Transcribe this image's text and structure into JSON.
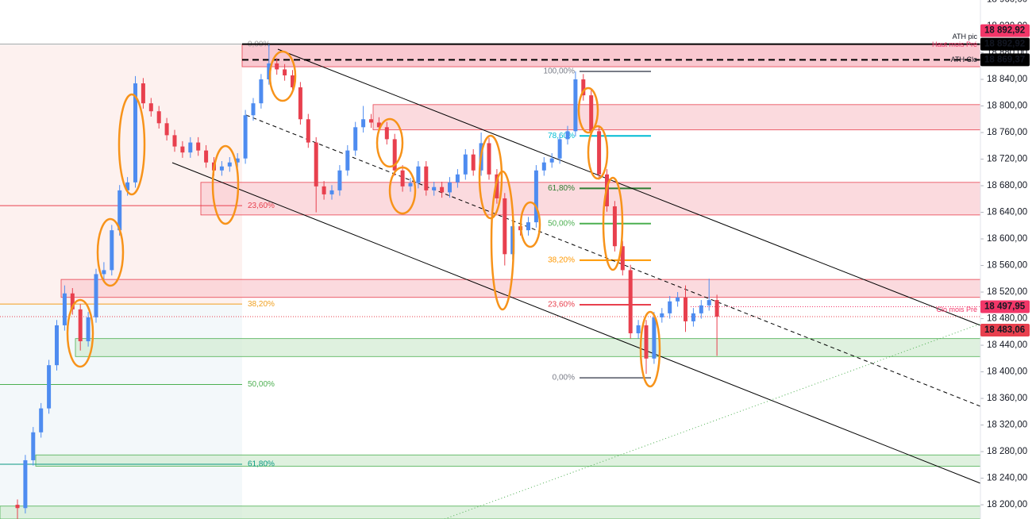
{
  "chart_data": {
    "type": "candlestick",
    "up_color": "#4e8cf0",
    "down_color": "#e8404e",
    "open": [
      18200,
      18195,
      18267,
      18309,
      18345,
      18410,
      18470,
      18518,
      18494,
      18446,
      18482,
      18547,
      18553,
      18613,
      18673,
      18685,
      18834,
      18804,
      18792,
      18774,
      18756,
      18739,
      18730,
      18745,
      18733,
      18715,
      18703,
      18709,
      18715,
      18721,
      18786,
      18804,
      18840,
      18864,
      18855,
      18846,
      18828,
      18780,
      18745,
      18679,
      18667,
      18673,
      18703,
      18733,
      18768,
      18780,
      18775,
      18768,
      18750,
      18703,
      18679,
      18684,
      18709,
      18673,
      18678,
      18670,
      18685,
      18697,
      18727,
      18703,
      18744,
      18697,
      18661,
      18577,
      18619,
      18613,
      18625,
      18703,
      18715,
      18721,
      18750,
      18762,
      18840,
      18816,
      18762,
      18697,
      18649,
      18589,
      18553,
      18458,
      18470,
      18420,
      18482,
      18488,
      18506,
      18512,
      18476,
      18488,
      18500,
      18508
    ],
    "high": [
      18208,
      18275,
      18317,
      18353,
      18418,
      18478,
      18530,
      18526,
      18502,
      18490,
      18555,
      18565,
      18621,
      18681,
      18693,
      18845,
      18842,
      18812,
      18800,
      18782,
      18764,
      18747,
      18753,
      18753,
      18741,
      18723,
      18717,
      18723,
      18729,
      18794,
      18812,
      18848,
      18893,
      18872,
      18863,
      18854,
      18836,
      18788,
      18753,
      18687,
      18681,
      18711,
      18741,
      18776,
      18800,
      18788,
      18783,
      18776,
      18758,
      18711,
      18692,
      18717,
      18717,
      18686,
      18686,
      18693,
      18705,
      18735,
      18735,
      18760,
      18752,
      18705,
      18669,
      18627,
      18627,
      18633,
      18711,
      18723,
      18729,
      18758,
      18770,
      18852,
      18848,
      18824,
      18770,
      18705,
      18657,
      18597,
      18561,
      18478,
      18478,
      18490,
      18496,
      18514,
      18520,
      18530,
      18496,
      18508,
      18540,
      18516
    ],
    "low": [
      18175,
      18187,
      18259,
      18301,
      18337,
      18402,
      18462,
      18486,
      18432,
      18438,
      18474,
      18539,
      18545,
      18605,
      18665,
      18677,
      18796,
      18784,
      18766,
      18748,
      18731,
      18722,
      18722,
      18725,
      18707,
      18695,
      18695,
      18701,
      18707,
      18713,
      18778,
      18796,
      18832,
      18847,
      18838,
      18820,
      18772,
      18737,
      18640,
      18659,
      18659,
      18665,
      18695,
      18725,
      18760,
      18767,
      18760,
      18742,
      18695,
      18671,
      18671,
      18676,
      18665,
      18665,
      18662,
      18662,
      18677,
      18689,
      18695,
      18695,
      18689,
      18653,
      18560,
      18569,
      18605,
      18605,
      18617,
      18695,
      18707,
      18713,
      18742,
      18754,
      18808,
      18754,
      18689,
      18641,
      18581,
      18545,
      18450,
      18450,
      18397,
      18412,
      18474,
      18480,
      18498,
      18460,
      18468,
      18480,
      18492,
      18424
    ],
    "close": [
      18195,
      18267,
      18309,
      18345,
      18410,
      18470,
      18518,
      18494,
      18446,
      18482,
      18547,
      18553,
      18613,
      18673,
      18685,
      18834,
      18804,
      18792,
      18774,
      18756,
      18739,
      18730,
      18745,
      18733,
      18715,
      18703,
      18709,
      18715,
      18721,
      18786,
      18804,
      18840,
      18864,
      18855,
      18846,
      18828,
      18780,
      18745,
      18679,
      18667,
      18673,
      18703,
      18733,
      18768,
      18780,
      18775,
      18768,
      18750,
      18703,
      18679,
      18684,
      18709,
      18673,
      18678,
      18670,
      18685,
      18697,
      18727,
      18703,
      18744,
      18697,
      18661,
      18577,
      18619,
      18613,
      18625,
      18703,
      18715,
      18721,
      18750,
      18762,
      18840,
      18816,
      18762,
      18697,
      18649,
      18589,
      18553,
      18458,
      18470,
      18420,
      18482,
      18488,
      18506,
      18512,
      18476,
      18488,
      18500,
      18508,
      18483
    ],
    "ylim": [
      18178.6,
      18959.4
    ],
    "yticks": [
      {
        "value": 18200,
        "label": "18 200,00"
      },
      {
        "value": 18240,
        "label": "18 240,00"
      },
      {
        "value": 18280,
        "label": "18 280,00"
      },
      {
        "value": 18320,
        "label": "18 320,00"
      },
      {
        "value": 18360,
        "label": "18 360,00"
      },
      {
        "value": 18400,
        "label": "18 400,00"
      },
      {
        "value": 18440,
        "label": "18 440,00"
      },
      {
        "value": 18480,
        "label": "18 480,00"
      },
      {
        "value": 18520,
        "label": "18 520,00"
      },
      {
        "value": 18560,
        "label": "18 560,00"
      },
      {
        "value": 18600,
        "label": "18 600,00"
      },
      {
        "value": 18640,
        "label": "18 640,00"
      },
      {
        "value": 18680,
        "label": "18 680,00"
      },
      {
        "value": 18720,
        "label": "18 720,00"
      },
      {
        "value": 18760,
        "label": "18 760,00"
      },
      {
        "value": 18800,
        "label": "18 800,00"
      },
      {
        "value": 18840,
        "label": "18 840,00"
      },
      {
        "value": 18880,
        "label": "18 880,00"
      },
      {
        "value": 18920,
        "label": "18 920,00"
      },
      {
        "value": 18960,
        "label": "18 960,00"
      }
    ],
    "zones": [
      {
        "top": 18893,
        "bottom": 18859,
        "color": "#f7b6c0"
      },
      {
        "top": 18802,
        "bottom": 18764,
        "color": "#f9cdd3"
      },
      {
        "top": 18685,
        "bottom": 18636,
        "color": "#f9cdd3"
      },
      {
        "top": 18539,
        "bottom": 18512,
        "color": "#f9cdd3"
      },
      {
        "top": 18450,
        "bottom": 18423,
        "color": "#d4ecd4"
      },
      {
        "top": 18275,
        "bottom": 18258,
        "color": "#d4ecd4"
      },
      {
        "top": 18198,
        "bottom": 18178.6,
        "color": "#d4ecd4"
      }
    ],
    "fib_left": [
      {
        "label": "0,00%",
        "price": 18893,
        "color": "#9e9e9e"
      },
      {
        "label": "23,60%",
        "price": 18650,
        "color": "#e8404e"
      },
      {
        "label": "38,20%",
        "price": 18502,
        "color": "#f0a020"
      },
      {
        "label": "50,00%",
        "price": 18381,
        "color": "#4caf50"
      },
      {
        "label": "61,80%",
        "price": 18261,
        "color": "#089981"
      }
    ],
    "fib_right": [
      {
        "label": "100,00%",
        "price": 18852,
        "color": "#787b86"
      },
      {
        "label": "78,60%",
        "price": 18755,
        "color": "#00bcd4"
      },
      {
        "label": "61,80%",
        "price": 18676,
        "color": "#2e7d32"
      },
      {
        "label": "50,00%",
        "price": 18623,
        "color": "#4caf50"
      },
      {
        "label": "38,20%",
        "price": 18568,
        "color": "#ff9800"
      },
      {
        "label": "23,60%",
        "price": 18501,
        "color": "#e8404e"
      },
      {
        "label": "0,00%",
        "price": 18391,
        "color": "#787b86"
      }
    ],
    "markers": [
      {
        "name": "Haut mois Pré",
        "price": {
          "value": 18892.92,
          "label": "18 892,92"
        },
        "color": "#f23668"
      },
      {
        "name": "ATH pic",
        "price": {
          "value": 18892.92,
          "label": "18 892,92"
        },
        "color": "#000000"
      },
      {
        "name": "ATH Clo",
        "price": {
          "value": 18869.37,
          "label": "18 869,37"
        },
        "color": "#000000"
      },
      {
        "name": "Clo mois Pré",
        "price": {
          "value": 18497.95,
          "label": "18 497,95"
        },
        "color": "#f23668"
      },
      {
        "price": {
          "value": 18483.06,
          "label": "18 483,06"
        },
        "color": "#e8404e"
      }
    ]
  }
}
